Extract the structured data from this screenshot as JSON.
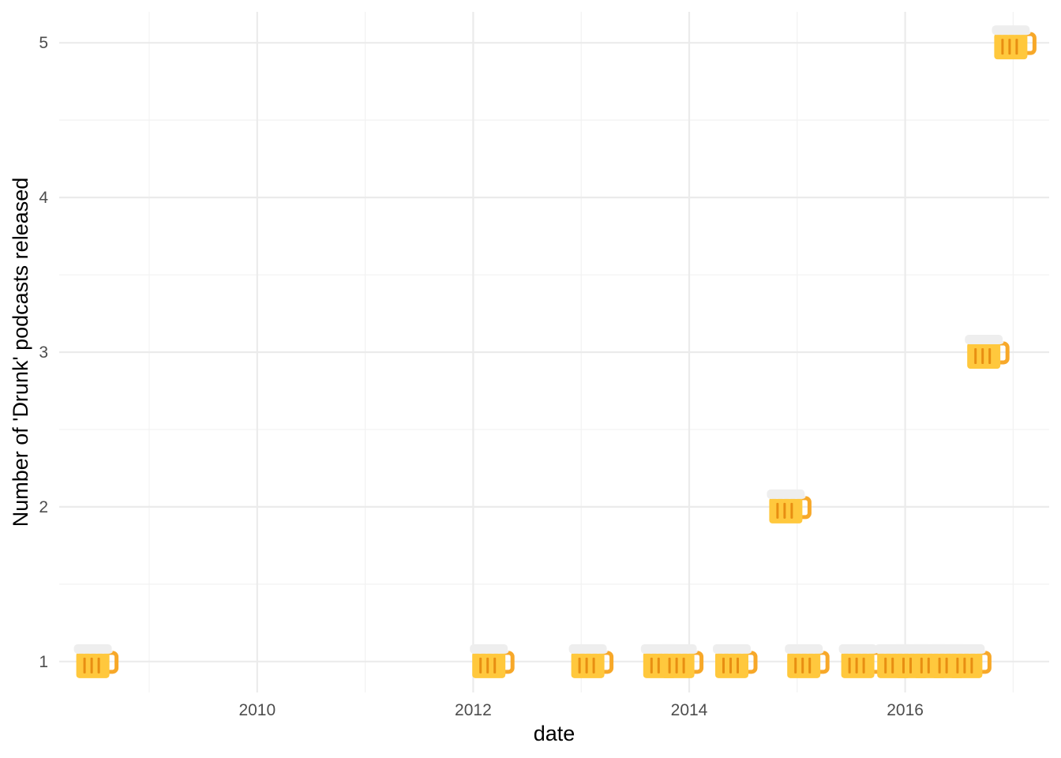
{
  "chart_data": {
    "type": "scatter",
    "marker": "beer-mug-emoji",
    "title": "",
    "xlabel": "date",
    "ylabel": "Number of 'Drunk' podcasts released",
    "xlim": [
      "2008-03-01",
      "2017-05-01"
    ],
    "ylim": [
      0.8,
      5.2
    ],
    "x_ticks": [
      "2010",
      "2012",
      "2014",
      "2016"
    ],
    "y_ticks": [
      "1",
      "2",
      "3",
      "4",
      "5"
    ],
    "grid": true,
    "legend": "none",
    "colors": {
      "mug_body": "#FFC83D",
      "mug_handle": "#F7A829",
      "mug_stripes": "#E88E12",
      "foam": "#EEEEEE"
    },
    "points": [
      {
        "x": "2008-07",
        "y": 1
      },
      {
        "x": "2012-03",
        "y": 1
      },
      {
        "x": "2013-02",
        "y": 1
      },
      {
        "x": "2013-10",
        "y": 1
      },
      {
        "x": "2013-12",
        "y": 1
      },
      {
        "x": "2014-06",
        "y": 1
      },
      {
        "x": "2014-12",
        "y": 2
      },
      {
        "x": "2015-02",
        "y": 1
      },
      {
        "x": "2015-08",
        "y": 1
      },
      {
        "x": "2015-12",
        "y": 1
      },
      {
        "x": "2016-02",
        "y": 1
      },
      {
        "x": "2016-04",
        "y": 1
      },
      {
        "x": "2016-06",
        "y": 1
      },
      {
        "x": "2016-08",
        "y": 1
      },
      {
        "x": "2016-10",
        "y": 3
      },
      {
        "x": "2017-01",
        "y": 5
      }
    ]
  }
}
